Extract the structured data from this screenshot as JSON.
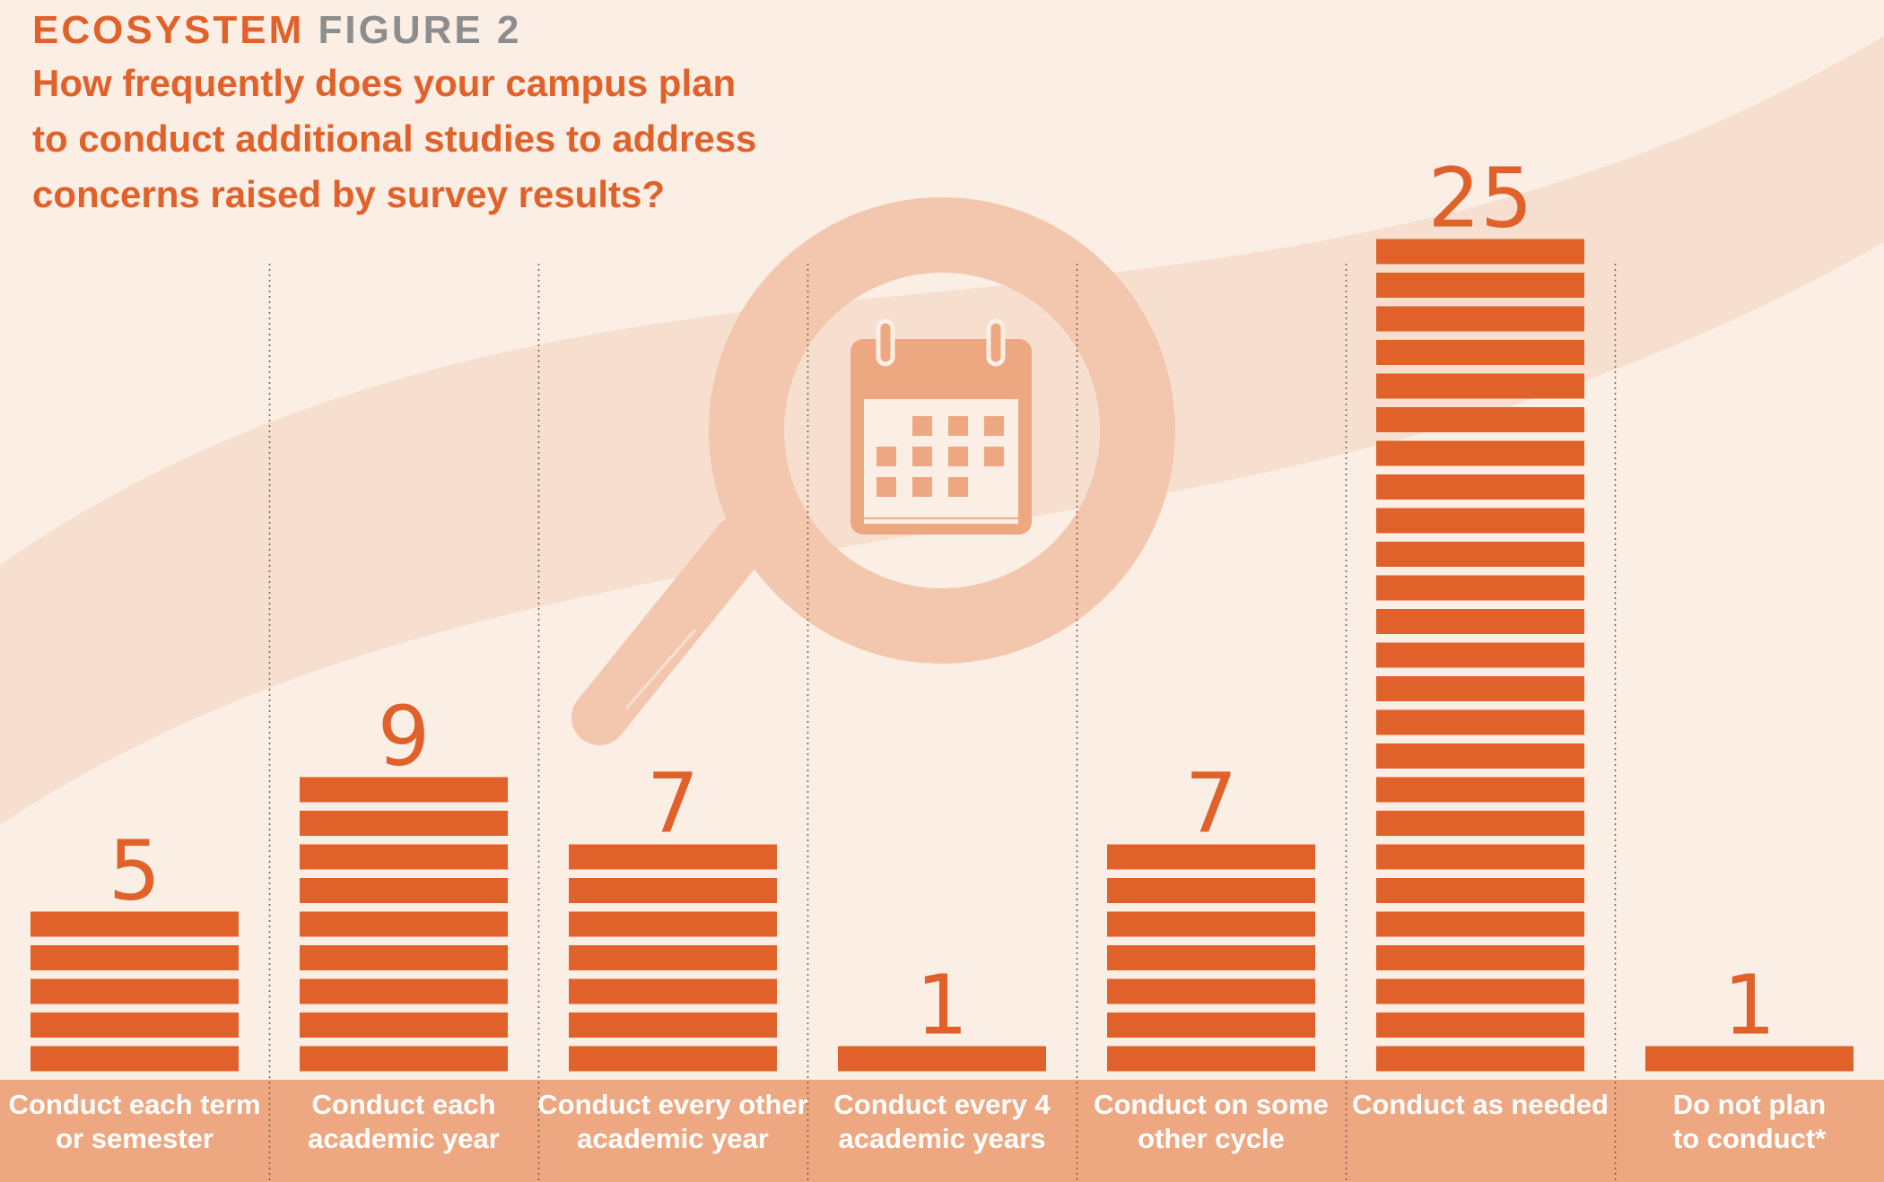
{
  "figure": {
    "kicker_primary": "ECOSYSTEM",
    "kicker_secondary": "FIGURE 2",
    "title": "How frequently does your campus plan to conduct additional studies to address concerns raised by survey results?"
  },
  "illustration": {
    "icon": "magnifier-calendar-icon"
  },
  "colors": {
    "bar": "#e0612a",
    "label_band": "#eda882",
    "background": "#fbeee4",
    "kicker_gray": "#8d8d8d"
  },
  "chart_data": {
    "type": "bar",
    "title": "How frequently does your campus plan to conduct additional studies to address concerns raised by survey results?",
    "categories": [
      [
        "Conduct each term",
        "or semester"
      ],
      [
        "Conduct each",
        "academic year"
      ],
      [
        "Conduct every other",
        "academic year"
      ],
      [
        "Conduct every 4",
        "academic years"
      ],
      [
        "Conduct on some",
        "other cycle"
      ],
      [
        "Conduct as needed"
      ],
      [
        "Do not plan",
        "to conduct*"
      ]
    ],
    "values": [
      5,
      9,
      7,
      1,
      7,
      25,
      1
    ],
    "value_labels": [
      "5",
      "9",
      "7",
      "1",
      "7",
      "25",
      "1"
    ],
    "xlabel": "",
    "ylabel": "",
    "ylim": [
      0,
      25
    ],
    "grid": false,
    "legend": "none"
  }
}
